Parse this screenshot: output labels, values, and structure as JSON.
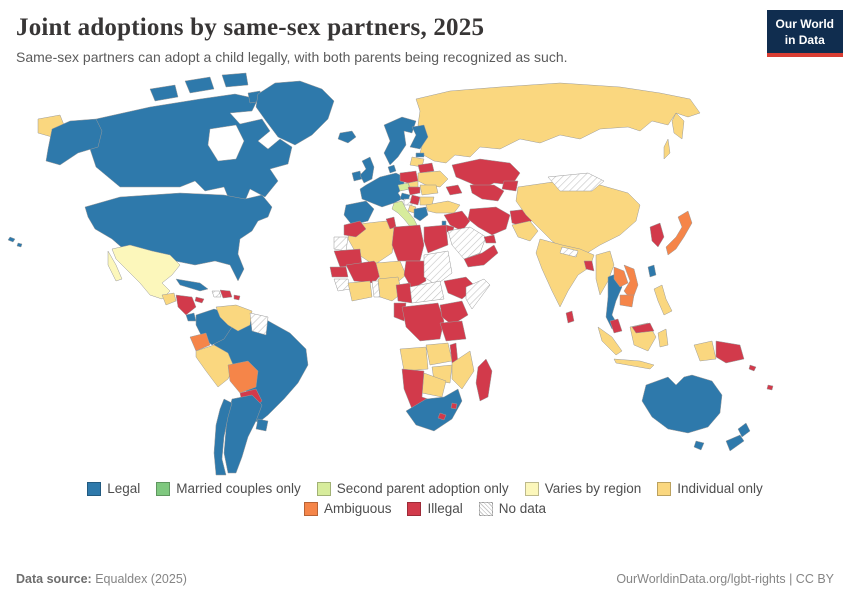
{
  "header": {
    "title": "Joint adoptions by same-sex partners, 2025",
    "subtitle": "Same-sex partners can adopt a child legally, with both parents being recognized as such."
  },
  "logo": {
    "line1": "Our World",
    "line2": "in Data",
    "background": "#102d4f",
    "accent": "#d93d33"
  },
  "legend": {
    "items": [
      {
        "key": "legal",
        "label": "Legal",
        "color": "#2e79ab"
      },
      {
        "key": "married-couples-only",
        "label": "Married couples only",
        "color": "#7fc87f"
      },
      {
        "key": "second-parent",
        "label": "Second parent adoption only",
        "color": "#d7ec9c"
      },
      {
        "key": "varies",
        "label": "Varies by region",
        "color": "#fcf7bb"
      },
      {
        "key": "individual",
        "label": "Individual only",
        "color": "#fad77f"
      },
      {
        "key": "ambiguous",
        "label": "Ambiguous",
        "color": "#f58549"
      },
      {
        "key": "illegal",
        "label": "Illegal",
        "color": "#d23a4b"
      },
      {
        "key": "no-data",
        "label": "No data",
        "color": "hatch"
      }
    ],
    "rows": [
      [
        "legal",
        "married-couples-only",
        "second-parent",
        "varies",
        "individual"
      ],
      [
        "ambiguous",
        "illegal",
        "no-data"
      ]
    ]
  },
  "footer": {
    "source_label": "Data source:",
    "source_value": " Equaldex (2025)",
    "right_text": "OurWorldinData.org/lgbt-rights | CC BY"
  },
  "chart_data": {
    "type": "choropleth-map",
    "title": "Joint adoptions by same-sex partners",
    "year": 2025,
    "categories": [
      "Legal",
      "Married couples only",
      "Second parent adoption only",
      "Varies by region",
      "Individual only",
      "Ambiguous",
      "Illegal",
      "No data"
    ],
    "country_categories": {
      "united-states": "legal",
      "canada": "legal",
      "greenland": "legal",
      "iceland": "legal",
      "ireland": "legal",
      "united-kingdom": "legal",
      "norway": "legal",
      "sweden": "legal",
      "finland": "legal",
      "denmark": "legal",
      "estonia": "legal",
      "germany": "legal",
      "netherlands": "legal",
      "belgium": "legal",
      "france": "legal",
      "spain": "legal",
      "portugal": "legal",
      "switzerland": "legal",
      "austria": "legal",
      "slovenia": "legal",
      "croatia": "legal",
      "greece": "legal",
      "israel": "legal",
      "south-africa": "legal",
      "thailand": "legal",
      "taiwan": "legal",
      "australia": "legal",
      "new-zealand": "legal",
      "cuba": "legal",
      "costa-rica": "legal",
      "colombia": "legal",
      "brazil": "legal",
      "chile": "legal",
      "argentina": "legal",
      "uruguay": "legal",
      "italy": "second-parent",
      "czechia": "second-parent",
      "mexico": "varies",
      "guatemala": "individual",
      "venezuela": "individual",
      "peru": "individual",
      "ukraine": "individual",
      "latvia": "individual",
      "lithuania": "individual",
      "slovakia": "individual",
      "romania": "individual",
      "bulgaria": "individual",
      "albania": "individual",
      "turkey": "individual",
      "russia": "individual",
      "china": "individual",
      "india": "individual",
      "pakistan": "individual",
      "myanmar": "individual",
      "indonesia": "individual",
      "philippines": "individual",
      "algeria": "individual",
      "niger": "individual",
      "cote-divoire": "individual",
      "ghana": "individual",
      "nigeria": "individual",
      "angola": "individual",
      "zambia": "individual",
      "zimbabwe": "individual",
      "botswana": "individual",
      "mozambique": "individual",
      "japan": "ambiguous",
      "ecuador": "ambiguous",
      "bolivia": "ambiguous",
      "laos": "ambiguous",
      "vietnam": "ambiguous",
      "cambodia": "ambiguous",
      "honduras": "illegal",
      "nicaragua": "illegal",
      "el-salvador": "illegal",
      "panama": "illegal",
      "jamaica": "illegal",
      "dominican-republic": "illegal",
      "puerto-rico": "illegal",
      "paraguay": "illegal",
      "poland": "illegal",
      "belarus": "illegal",
      "hungary": "illegal",
      "serbia": "illegal",
      "kazakhstan": "illegal",
      "uzbekistan": "illegal",
      "turkmenistan": "illegal",
      "kyrgyzstan": "illegal",
      "tajikistan": "illegal",
      "azerbaijan": "illegal",
      "armenia": "illegal",
      "georgia": "illegal",
      "iran": "illegal",
      "iraq": "illegal",
      "syria": "illegal",
      "jordan": "illegal",
      "yemen": "illegal",
      "oman": "illegal",
      "united-arab-emirates": "illegal",
      "kuwait": "illegal",
      "qatar": "illegal",
      "egypt": "illegal",
      "libya": "illegal",
      "tunisia": "illegal",
      "morocco": "illegal",
      "mauritania": "illegal",
      "senegal": "illegal",
      "mali": "illegal",
      "chad": "illegal",
      "cameroon": "illegal",
      "congo": "illegal",
      "democratic-republic-of-congo": "illegal",
      "uganda": "illegal",
      "kenya": "illegal",
      "tanzania": "illegal",
      "ethiopia": "illegal",
      "eritrea": "illegal",
      "malawi": "illegal",
      "madagascar": "illegal",
      "namibia": "illegal",
      "lesotho": "illegal",
      "eswatini": "illegal",
      "afghanistan": "illegal",
      "bangladesh": "illegal",
      "sri-lanka": "illegal",
      "malaysia": "illegal",
      "singapore": "illegal",
      "north-korea": "illegal",
      "south-korea": "illegal",
      "papua-new-guinea": "illegal",
      "fiji": "illegal",
      "solomon-islands": "illegal",
      "mongolia": "no-data",
      "saudi-arabia": "no-data",
      "sudan": "no-data",
      "somalia": "no-data",
      "western-sahara": "no-data",
      "guyana": "no-data",
      "suriname": "no-data",
      "nepal": "no-data",
      "bosnia-and-herzegovina": "no-data",
      "haiti": "no-data",
      "guinea": "no-data",
      "togo": "no-data",
      "benin": "no-data",
      "central-african-republic": "no-data",
      "south-sudan": "no-data"
    }
  }
}
